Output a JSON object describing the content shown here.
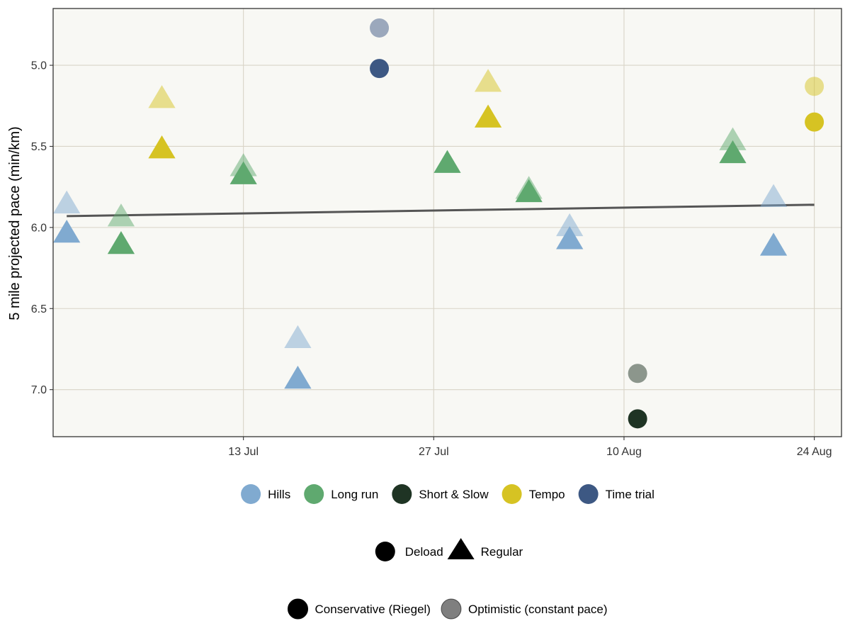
{
  "chart_data": {
    "type": "scatter",
    "title": "",
    "xlabel": "",
    "ylabel": "5 mile projected pace (min/km)",
    "y_reversed": true,
    "xlim": [
      "2025-06-29",
      "2025-08-26"
    ],
    "ylim": [
      4.65,
      7.29
    ],
    "x_ticks": [
      {
        "date": "2025-07-13",
        "label": "13 Jul"
      },
      {
        "date": "2025-07-27",
        "label": "27 Jul"
      },
      {
        "date": "2025-08-10",
        "label": "10 Aug"
      },
      {
        "date": "2025-08-24",
        "label": "24 Aug"
      }
    ],
    "y_ticks": [
      {
        "value": 5.0,
        "label": "5.0"
      },
      {
        "value": 5.5,
        "label": "5.5"
      },
      {
        "value": 6.0,
        "label": "6.0"
      },
      {
        "value": 6.5,
        "label": "6.5"
      },
      {
        "value": 7.0,
        "label": "7.0"
      }
    ],
    "grid": true,
    "background": "#f8f8f4",
    "grid_color": "#d9d4c7",
    "trend_line": {
      "color": "#555555",
      "points": [
        {
          "x": "2025-06-30",
          "y": 5.93
        },
        {
          "x": "2025-08-24",
          "y": 5.86
        }
      ]
    },
    "points": [
      {
        "x": "2025-06-30",
        "category": "Hills",
        "phase": "Regular",
        "conservative": 6.04,
        "optimistic": 5.86
      },
      {
        "x": "2025-07-04",
        "category": "Long run",
        "phase": "Regular",
        "conservative": 6.11,
        "optimistic": 5.94
      },
      {
        "x": "2025-07-07",
        "category": "Tempo",
        "phase": "Regular",
        "conservative": 5.52,
        "optimistic": 5.21
      },
      {
        "x": "2025-07-13",
        "category": "Long run",
        "phase": "Regular",
        "conservative": 5.68,
        "optimistic": 5.63
      },
      {
        "x": "2025-07-17",
        "category": "Hills",
        "phase": "Regular",
        "conservative": 6.94,
        "optimistic": 6.69
      },
      {
        "x": "2025-07-23",
        "category": "Time trial",
        "phase": "Deload",
        "conservative": 5.02,
        "optimistic": 4.77
      },
      {
        "x": "2025-07-28",
        "category": "Long run",
        "phase": "Regular",
        "conservative": 5.61,
        "optimistic": null
      },
      {
        "x": "2025-07-31",
        "category": "Tempo",
        "phase": "Regular",
        "conservative": 5.33,
        "optimistic": 5.11
      },
      {
        "x": "2025-08-03",
        "category": "Long run",
        "phase": "Regular",
        "conservative": 5.79,
        "optimistic": 5.77
      },
      {
        "x": "2025-08-06",
        "category": "Hills",
        "phase": "Regular",
        "conservative": 6.08,
        "optimistic": 6.0
      },
      {
        "x": "2025-08-11",
        "category": "Short & Slow",
        "phase": "Deload",
        "conservative": 7.18,
        "optimistic": 6.9
      },
      {
        "x": "2025-08-18",
        "category": "Long run",
        "phase": "Regular",
        "conservative": 5.55,
        "optimistic": 5.47
      },
      {
        "x": "2025-08-21",
        "category": "Hills",
        "phase": "Regular",
        "conservative": 6.12,
        "optimistic": 5.82
      },
      {
        "x": "2025-08-24",
        "category": "Tempo",
        "phase": "Deload",
        "conservative": 5.35,
        "optimistic": 5.13
      }
    ],
    "legends": {
      "category": [
        {
          "label": "Hills",
          "color": "#80aad0"
        },
        {
          "label": "Long run",
          "color": "#5fa96f"
        },
        {
          "label": "Short & Slow",
          "color": "#1f3424"
        },
        {
          "label": "Tempo",
          "color": "#d6c323"
        },
        {
          "label": "Time trial",
          "color": "#3d5883"
        }
      ],
      "phase": [
        {
          "label": "Deload",
          "shape": "circle"
        },
        {
          "label": "Regular",
          "shape": "triangle"
        }
      ],
      "estimate": [
        {
          "label": "Conservative (Riegel)",
          "alpha": 1.0
        },
        {
          "label": "Optimistic (constant pace)",
          "alpha": 0.5
        }
      ]
    }
  }
}
